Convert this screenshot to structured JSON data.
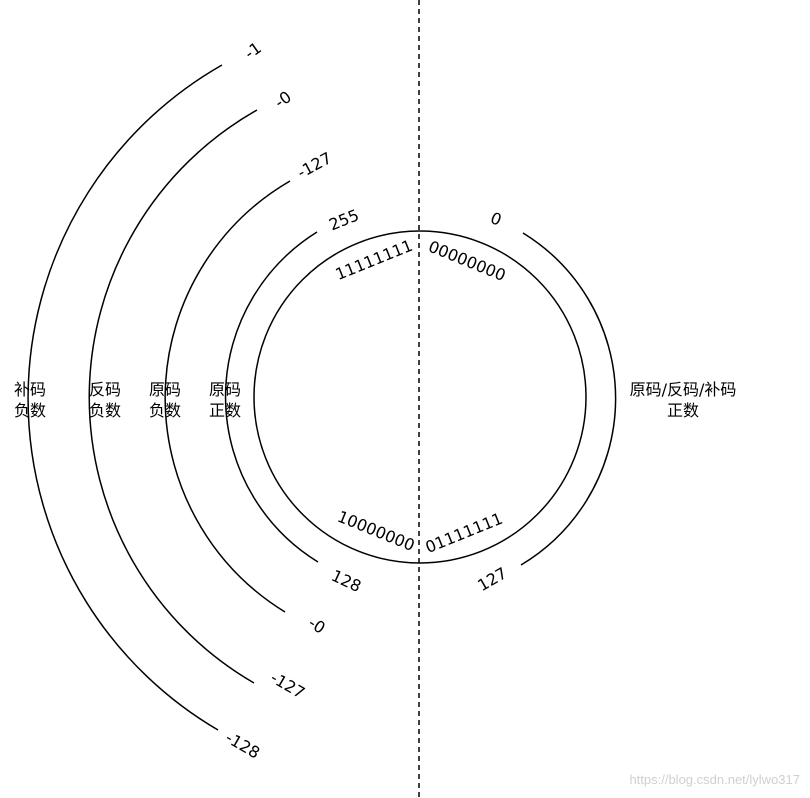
{
  "circle": {
    "top_left_code": "11111111",
    "top_right_code": "00000000",
    "bottom_left_code": "10000000",
    "bottom_right_code": "01111111"
  },
  "arcs": {
    "right": {
      "start": "0",
      "end": "127",
      "label_line1": "原码/反码/补码",
      "label_line2": "正数"
    },
    "positive_unsigned": {
      "start": "255",
      "end": "128",
      "label_line1": "原码",
      "label_line2": "正数"
    },
    "sign_magnitude": {
      "start": "-127",
      "end": "-0",
      "label_line1": "原码",
      "label_line2": "负数"
    },
    "ones_complement": {
      "start": "-0",
      "end": "-127",
      "label_line1": "反码",
      "label_line2": "负数"
    },
    "twos_complement": {
      "start": "-1",
      "end": "-128",
      "label_line1": "补码",
      "label_line2": "负数"
    }
  },
  "watermark": "https://blog.csdn.net/lylwo317"
}
